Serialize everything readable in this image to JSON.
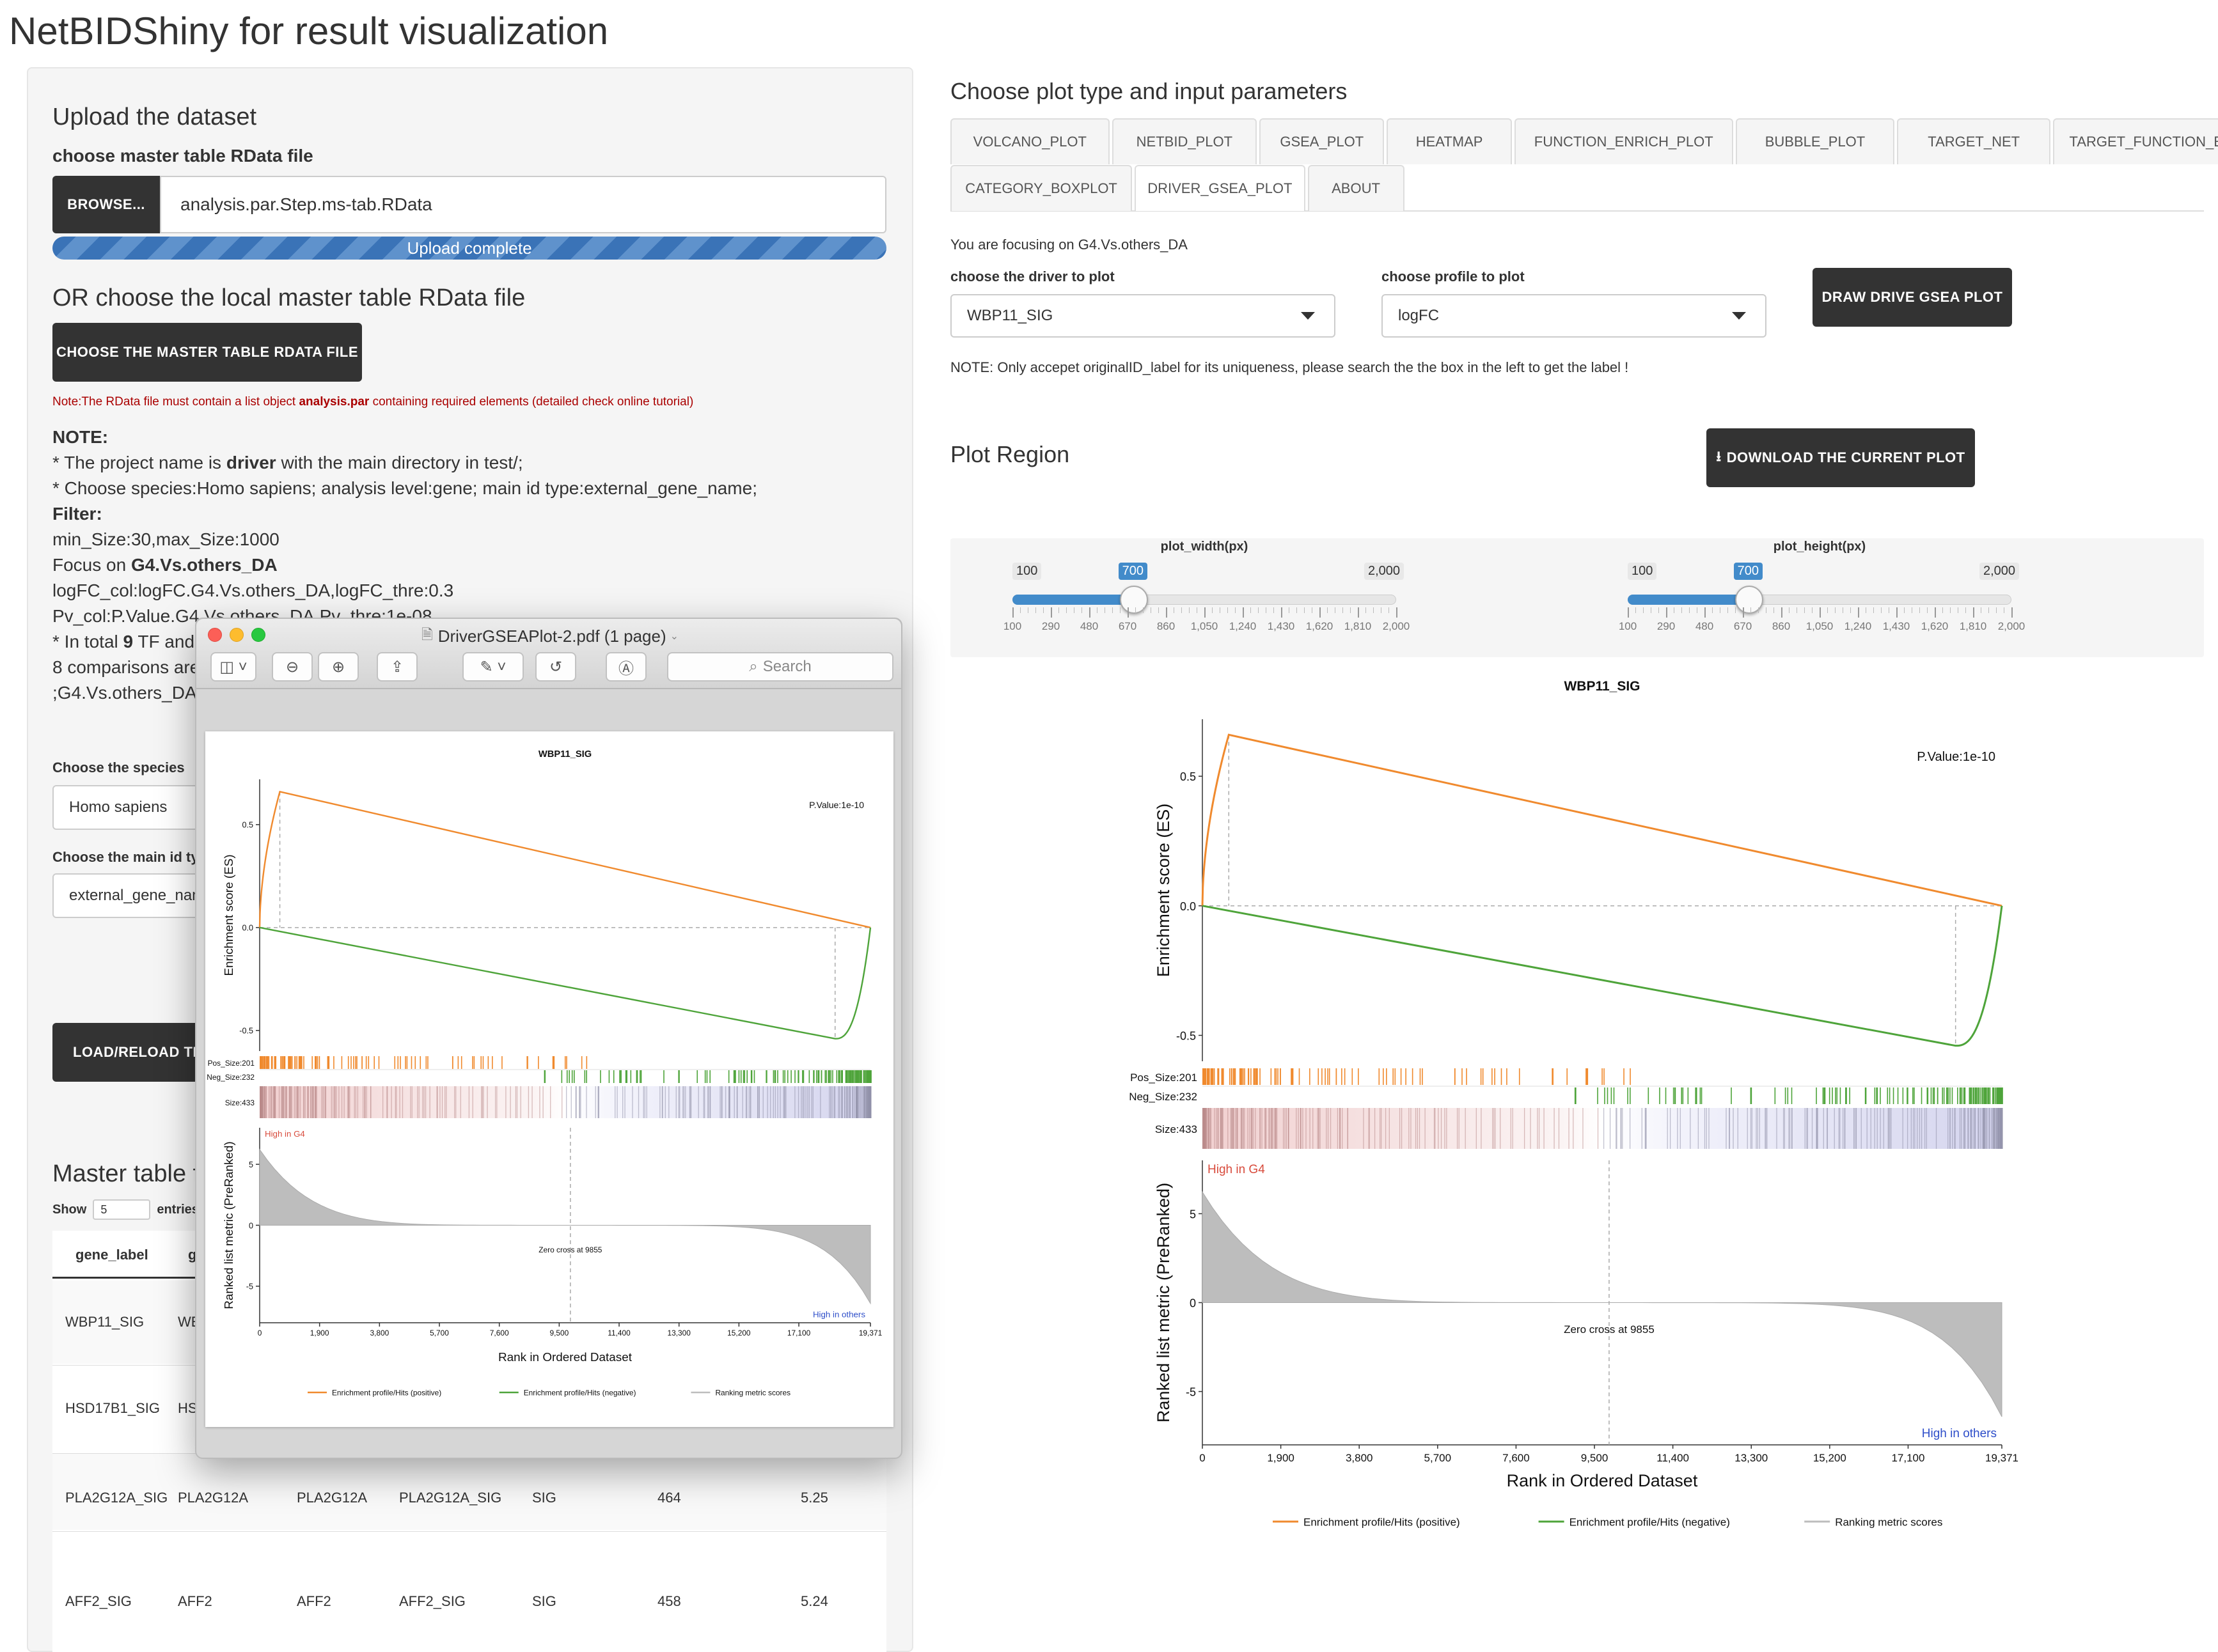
{
  "app_title": "NetBIDShiny for result visualization",
  "left": {
    "upload_title": "Upload the dataset",
    "master_label": "choose master table RData file",
    "browse_label": "BROWSE...",
    "file_value": "analysis.par.Step.ms-tab.RData",
    "progress_text": "Upload complete",
    "progress_fraction": 1.0,
    "or_title": "OR choose the local master table RData file",
    "choose_btn": "CHOOSE THE MASTER TABLE RDATA FILE",
    "note_pre": "Note:The RData file must contain a list object ",
    "note_bold": "analysis.par",
    "note_post": " containing required elements (detailed check online tutorial)",
    "note_head": "NOTE:",
    "line1_pre": "* The project name is ",
    "line1_bold": "driver",
    "line1_post": " with the main directory in test/;",
    "line2": "* Choose species:Homo sapiens; analysis level:gene; main id type:external_gene_name;",
    "filter_head": "Filter:",
    "filter_line": "min_Size:30,max_Size:1000",
    "focus_pre": "Focus on ",
    "focus_bold": "G4.Vs.others_DA",
    "logfc_line": "logFC_col:logFC.G4.Vs.others_DA,logFC_thre:0.3",
    "pv_line": "Pv_col:P.Value.G4.Vs.others_DA,Pv_thre:1e-08",
    "total_pre": "* In total ",
    "total_bold": "9",
    "total_post": " TF and",
    "comparisons": "8 comparisons are",
    "last_line": ";G4.Vs.others_DA",
    "species_label": "Choose the species",
    "species_value": "Homo sapiens",
    "mainid_label": "Choose the main id typ",
    "mainid_value": "external_gene_name",
    "load_btn": "LOAD/RELOAD THE",
    "master_table_title": "Master table f",
    "show_label": "Show",
    "show_value": "5",
    "entries_label": "entries",
    "col_gene_label": "gene_label",
    "col_g": "g",
    "rows": [
      {
        "c1": "WBP11_SIG",
        "c2": "WE"
      },
      {
        "c1": "HSD17B1_SIG",
        "c2": "HS"
      },
      {
        "c1": "PLA2G12A_SIG",
        "c2": "PLA2G12A",
        "c3": "PLA2G12A",
        "c4": "PLA2G12A_SIG",
        "c5": "SIG",
        "c6": "464",
        "c7": "5.25"
      },
      {
        "c1": "AFF2_SIG",
        "c2": "AFF2",
        "c3": "AFF2",
        "c4": "AFF2_SIG",
        "c5": "SIG",
        "c6": "458",
        "c7": "5.24"
      }
    ]
  },
  "right": {
    "title": "Choose plot type and input parameters",
    "tabs_row1": [
      "VOLCANO_PLOT",
      "NETBID_PLOT",
      "GSEA_PLOT",
      "HEATMAP",
      "FUNCTION_ENRICH_PLOT",
      "BUBBLE_PLOT",
      "TARGET_NET",
      "TARGET_FUNCTION_ENRICH_PLOT"
    ],
    "tabs_row2": [
      "CATEGORY_BOXPLOT",
      "DRIVER_GSEA_PLOT",
      "ABOUT"
    ],
    "active_tab": "DRIVER_GSEA_PLOT",
    "focus_text": "You are focusing on G4.Vs.others_DA",
    "driver_label": "choose the driver to plot",
    "driver_value": "WBP11_SIG",
    "profile_label": "choose profile to plot",
    "profile_value": "logFC",
    "draw_btn": "DRAW DRIVE GSEA PLOT",
    "note": "NOTE: Only accepet originalID_label for its uniqueness, please search the the box in the left to get the label !",
    "plot_region": "Plot Region",
    "download_btn": "DOWNLOAD THE CURRENT PLOT",
    "width_slider": {
      "label": "plot_width(px)",
      "min": "100",
      "max": "2,000",
      "value": "700",
      "fraction": 0.316
    },
    "height_slider": {
      "label": "plot_height(px)",
      "min": "100",
      "max": "2,000",
      "value": "700",
      "fraction": 0.316
    },
    "slider_ticks": [
      "100",
      "290",
      "480",
      "670",
      "860",
      "1,050",
      "1,240",
      "1,430",
      "1,620",
      "1,810",
      "2,000"
    ]
  },
  "preview_window": {
    "title": "DriverGSEAPlot-2.pdf (1 page)",
    "search_placeholder": "Search",
    "icons": [
      "sidebar-icon",
      "zoom-out-icon",
      "zoom-in-icon",
      "share-icon",
      "markup-pen-icon",
      "rotate-icon",
      "annotate-icon"
    ]
  },
  "chart_data": {
    "type": "line",
    "title": "WBP11_SIG",
    "pvalue_text": "P.Value:1e-10",
    "es_ylabel": "Enrichment score (ES)",
    "es_ticks": [
      "0.5",
      "0.0",
      "-0.5"
    ],
    "pos_label": "Pos_Size:201",
    "neg_label": "Neg_Size:232",
    "size_label": "Size:433",
    "rank_ylabel": "Ranked list metric (PreRanked)",
    "rank_ticks": [
      "5",
      "0",
      "-5"
    ],
    "high_g4": "High in G4",
    "high_others": "High in others",
    "zero_cross": "Zero cross at 9855",
    "xlabel": "Rank in Ordered Dataset",
    "xticks": [
      "0",
      "1,900",
      "3,800",
      "5,700",
      "7,600",
      "9,500",
      "11,400",
      "13,300",
      "15,200",
      "17,100",
      "19,371"
    ],
    "xlim": [
      0,
      19371
    ],
    "es_ylim": [
      -0.6,
      0.72
    ],
    "positive_peak": {
      "x": 640,
      "y": 0.66
    },
    "negative_peak": {
      "x": 18250,
      "y": -0.54
    },
    "legend": [
      "Enrichment profile/Hits (positive)",
      "Enrichment profile/Hits (negative)",
      "Ranking metric scores"
    ],
    "colors": {
      "positive": "#f08a2e",
      "negative": "#4ea43a",
      "ranking": "#bdbdbd",
      "high_g4": "#d84b3c",
      "high_others": "#2e4ec9"
    }
  }
}
